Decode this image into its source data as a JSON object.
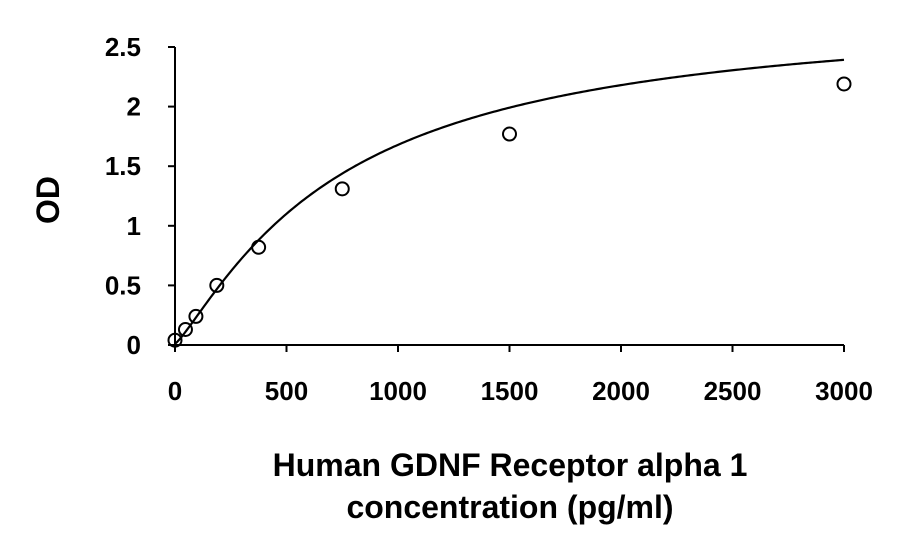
{
  "chart_data": {
    "type": "scatter",
    "title": "",
    "xlabel_lines": [
      "Human GDNF Receptor alpha 1",
      "concentration (pg/ml)"
    ],
    "ylabel": "OD",
    "xlim": [
      0,
      3000
    ],
    "ylim": [
      0,
      2.5
    ],
    "x_ticks": [
      0,
      500,
      1000,
      1500,
      2000,
      2500,
      3000
    ],
    "x_tick_labels": [
      "0",
      "500",
      "1000",
      "1500",
      "2000",
      "2500",
      "3000"
    ],
    "y_ticks": [
      0,
      0.5,
      1,
      1.5,
      2,
      2.5
    ],
    "y_tick_labels": [
      "0",
      "0.5",
      "1",
      "1.5",
      "2",
      "2.5"
    ],
    "grid": false,
    "legend": "none",
    "series": [
      {
        "marker": "open-circle",
        "x": [
          0,
          46.9,
          93.8,
          187.5,
          375,
          750,
          1500,
          3000
        ],
        "y": [
          0.04,
          0.13,
          0.24,
          0.5,
          0.82,
          1.31,
          1.77,
          2.19
        ]
      }
    ],
    "fit_curve": {
      "model": "4PL",
      "A": 0.01,
      "B": 1.2,
      "C": 735.1,
      "D": 2.833
    },
    "colors": {
      "marker": "#000000",
      "curve": "#000000",
      "axis": "#000000"
    }
  }
}
